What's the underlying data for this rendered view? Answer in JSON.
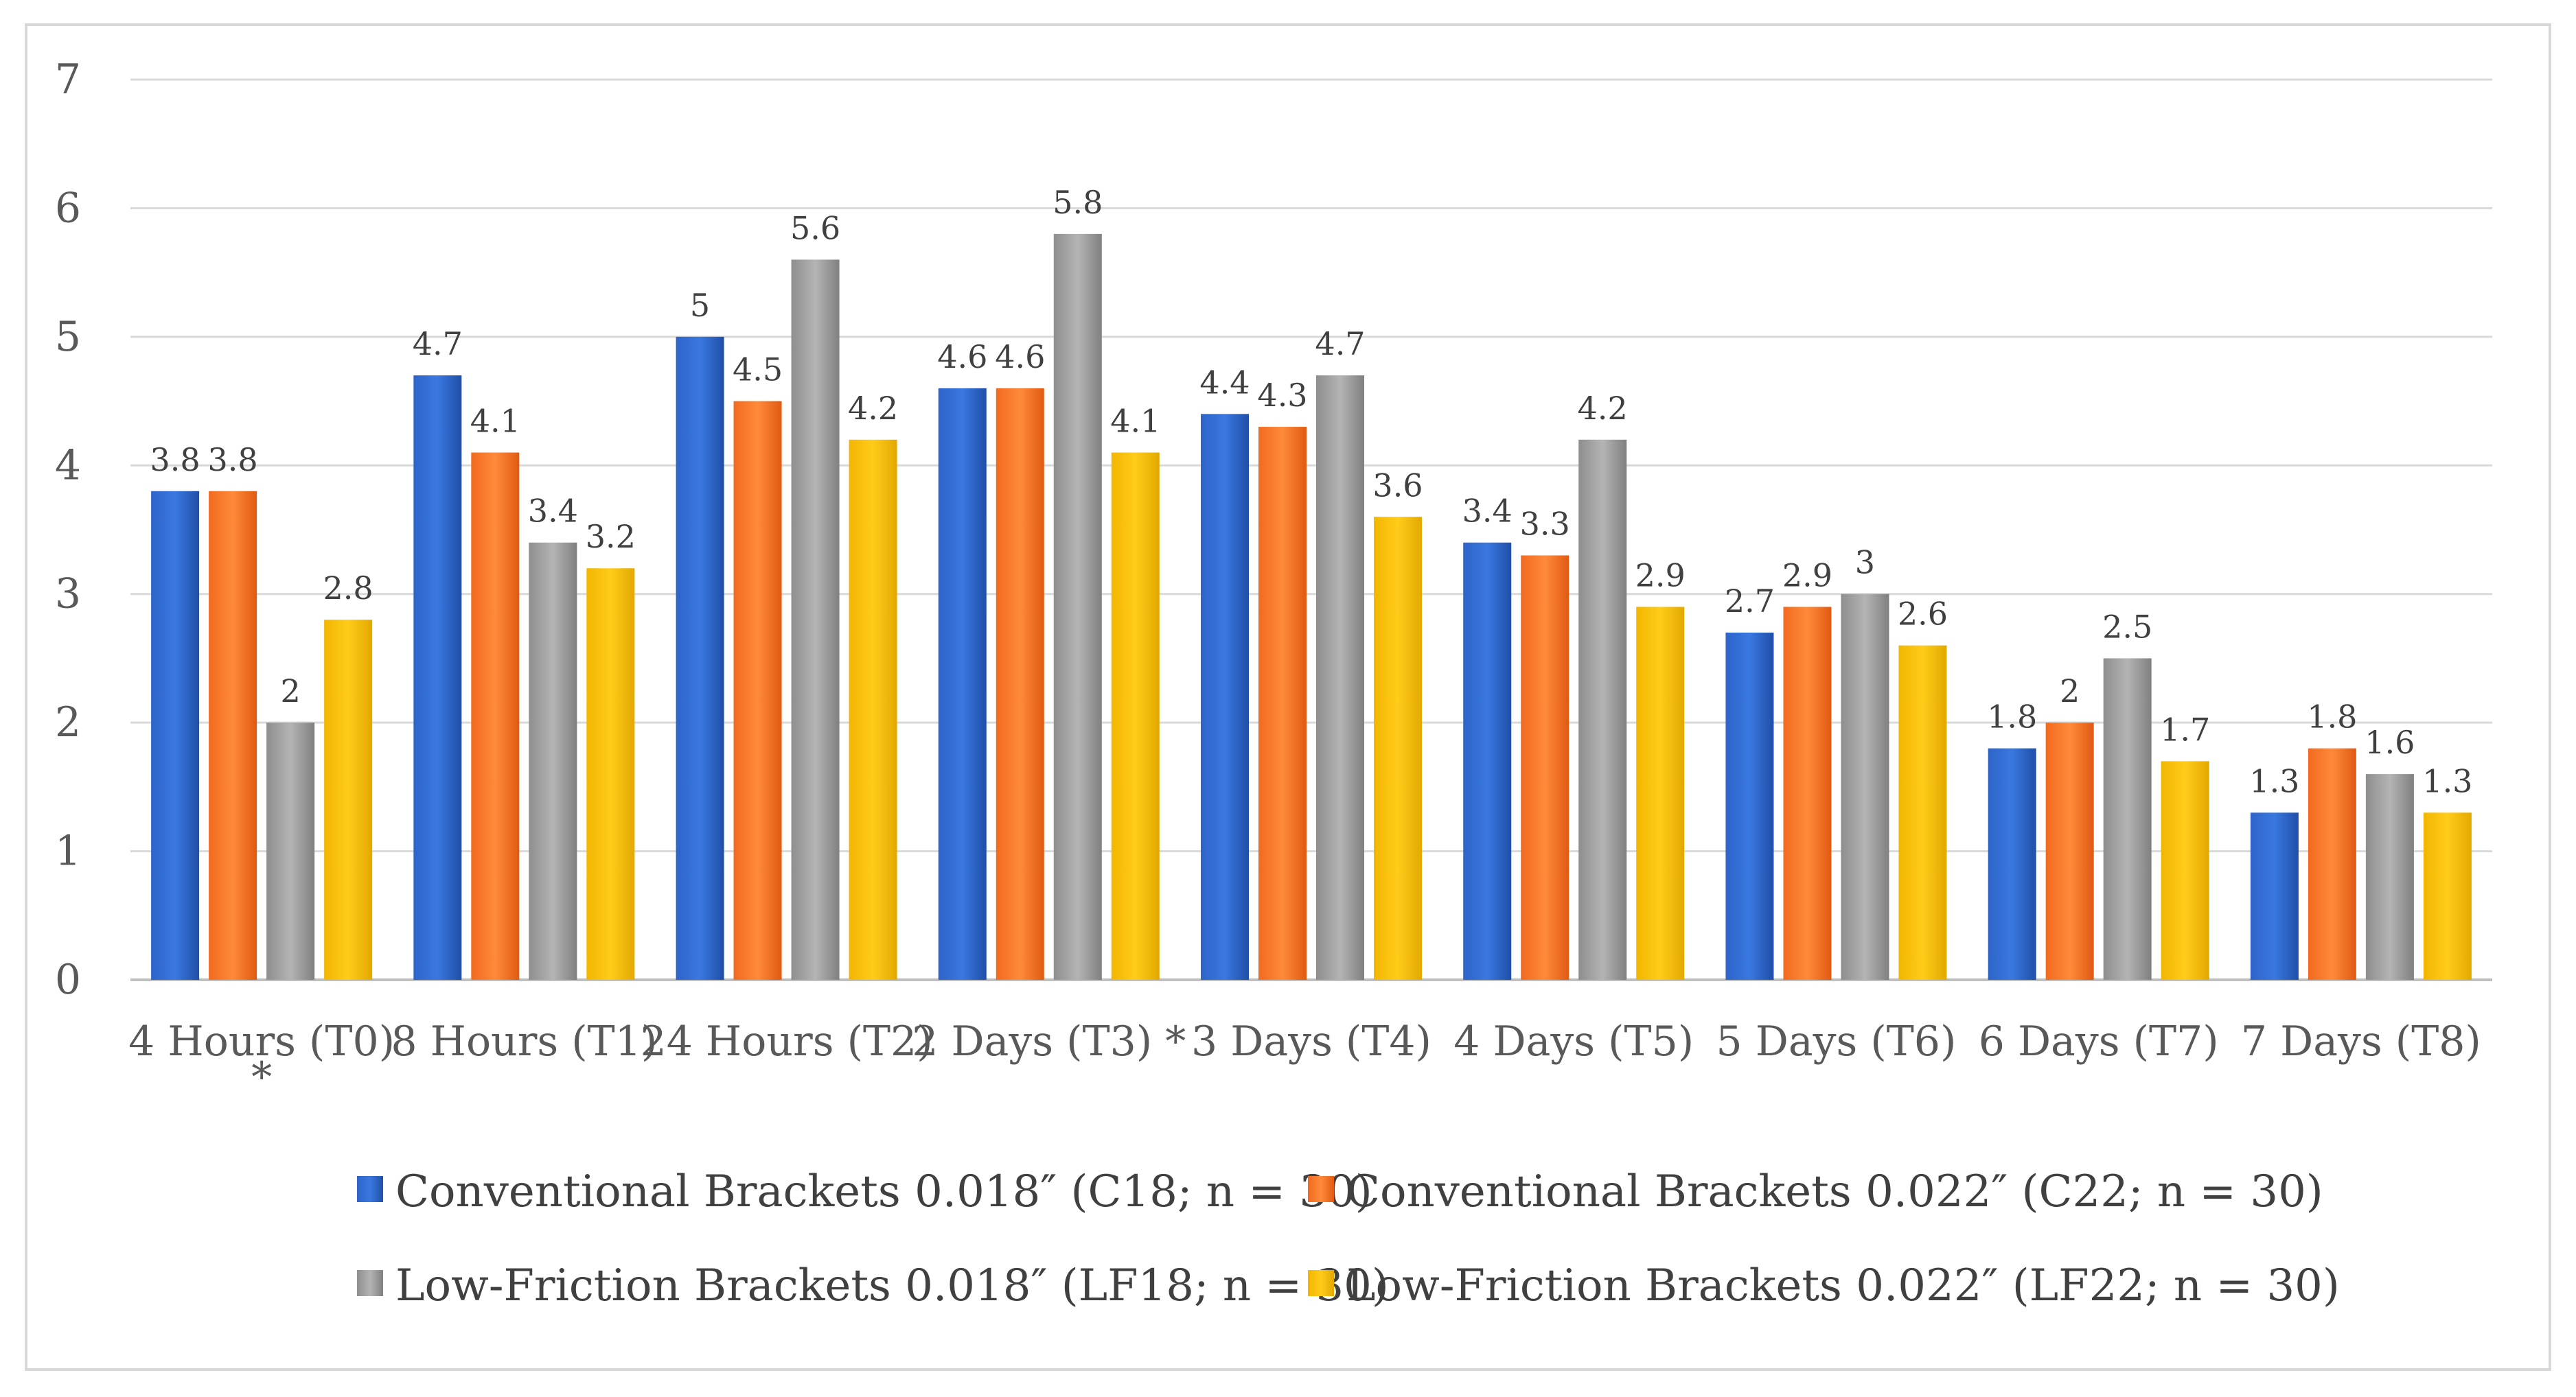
{
  "chart_data": {
    "type": "bar",
    "title": "",
    "xlabel": "",
    "ylabel": "",
    "ylim": [
      0,
      7
    ],
    "yticks": [
      0,
      1,
      2,
      3,
      4,
      5,
      6,
      7
    ],
    "grid": true,
    "legend_position": "bottom",
    "categories": [
      [
        "4 Hours (T0)",
        "*"
      ],
      [
        "8 Hours (T1)"
      ],
      [
        "24 Hours (T2)"
      ],
      [
        "2 Days (T3) *"
      ],
      [
        "3 Days (T4)"
      ],
      [
        "4 Days (T5)"
      ],
      [
        "5 Days (T6)"
      ],
      [
        "6 Days (T7)"
      ],
      [
        "7 Days (T8)"
      ]
    ],
    "series": [
      {
        "name": "Conventional Brackets 0.018″ (C18; n = 30)",
        "color": "#4472C4",
        "values": [
          3.8,
          4.7,
          5,
          4.6,
          4.4,
          3.4,
          2.7,
          1.8,
          1.3
        ]
      },
      {
        "name": "Conventional Brackets 0.022″ (C22; n = 30)",
        "color": "#ED7D31",
        "values": [
          3.8,
          4.1,
          4.5,
          4.6,
          4.3,
          3.3,
          2.9,
          2,
          1.8
        ]
      },
      {
        "name": "Low-Friction Brackets 0.018″ (LF18; n = 30)",
        "color": "#A5A5A5",
        "values": [
          2,
          3.4,
          5.6,
          5.8,
          4.7,
          4.2,
          3,
          2.5,
          1.6
        ]
      },
      {
        "name": "Low-Friction Brackets 0.022″ (LF22; n = 30)",
        "color": "#FFC000",
        "values": [
          2.8,
          3.2,
          4.2,
          4.1,
          3.6,
          2.9,
          2.6,
          1.7,
          1.3
        ]
      }
    ]
  }
}
